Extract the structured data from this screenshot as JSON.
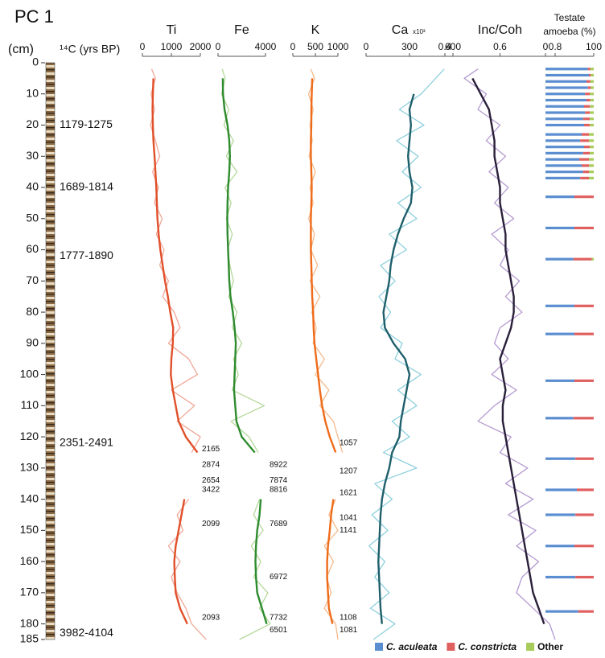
{
  "chart_data": {
    "type": "depth-profile",
    "title": "PC 1",
    "depth_label": "(cm)",
    "age_label": "¹⁴C (yrs BP)",
    "ylim": [
      0,
      185
    ],
    "yticks": [
      0,
      10,
      20,
      30,
      40,
      50,
      60,
      70,
      80,
      90,
      100,
      110,
      120,
      130,
      140,
      150,
      160,
      170,
      180,
      185
    ],
    "ages": [
      {
        "label": "1179-1275",
        "depth": 20
      },
      {
        "label": "1689-1814",
        "depth": 40
      },
      {
        "label": "1777-1890",
        "depth": 62
      },
      {
        "label": "2351-2491",
        "depth": 122
      },
      {
        "label": "3982-4104",
        "depth": 183
      }
    ],
    "depths": [
      2,
      5,
      10,
      15,
      20,
      25,
      30,
      35,
      40,
      45,
      50,
      55,
      60,
      65,
      70,
      75,
      80,
      85,
      90,
      95,
      100,
      105,
      110,
      115,
      120,
      125,
      130,
      135,
      140,
      145,
      150,
      155,
      160,
      165,
      170,
      175,
      180,
      185
    ],
    "panels": [
      {
        "name": "Ti",
        "xlim": [
          0,
          2000
        ],
        "xticks": [
          0,
          1000,
          2000
        ],
        "raw": {
          "color": "#f0a898",
          "values": [
            320,
            450,
            300,
            420,
            280,
            450,
            600,
            350,
            550,
            420,
            680,
            480,
            750,
            600,
            900,
            700,
            1100,
            1300,
            900,
            1600,
            1900,
            1000,
            1800,
            1200,
            2000,
            1700,
            null,
            null,
            1600,
            1200,
            1400,
            900,
            1300,
            1000,
            1200,
            1500,
            1700,
            2200
          ]
        },
        "smooth": {
          "color": "#e0502a",
          "values": [
            null,
            380,
            360,
            350,
            360,
            380,
            420,
            450,
            480,
            500,
            520,
            560,
            620,
            700,
            780,
            880,
            960,
            1060,
            1050,
            1000,
            980,
            1050,
            1150,
            1250,
            1500,
            1900,
            null,
            null,
            1450,
            1350,
            1250,
            1150,
            1100,
            1120,
            1150,
            1300,
            1550,
            null
          ]
        },
        "annotations": [
          {
            "value": 2165,
            "depth": 124
          },
          {
            "value": 2874,
            "depth": 129
          },
          {
            "value": 2654,
            "depth": 134
          },
          {
            "value": 3422,
            "depth": 137
          },
          {
            "value": 2099,
            "depth": 148
          },
          {
            "value": 2093,
            "depth": 178
          }
        ]
      },
      {
        "name": "Fe",
        "xlim": [
          0,
          4000
        ],
        "xticks": [
          0,
          4000
        ],
        "raw": {
          "color": "#b5d89a",
          "values": [
            350,
            600,
            300,
            900,
            500,
            1300,
            700,
            1600,
            600,
            1100,
            700,
            1200,
            800,
            1000,
            1300,
            900,
            1600,
            1200,
            2000,
            1300,
            1700,
            1200,
            3900,
            1100,
            2600,
            3400,
            null,
            null,
            3500,
            3000,
            3800,
            2800,
            3600,
            3000,
            4200,
            3500,
            4400,
            1800
          ]
        },
        "smooth": {
          "color": "#2e8b2e",
          "values": [
            null,
            400,
            420,
            550,
            800,
            950,
            1000,
            950,
            850,
            800,
            780,
            800,
            850,
            900,
            950,
            1050,
            1250,
            1400,
            1500,
            1450,
            1400,
            1350,
            1450,
            1550,
            2000,
            3100,
            null,
            null,
            3600,
            3500,
            3300,
            3200,
            3150,
            3200,
            3300,
            3700,
            4100,
            null
          ]
        },
        "annotations": [
          {
            "value": 8922,
            "depth": 129
          },
          {
            "value": 7874,
            "depth": 134
          },
          {
            "value": 8816,
            "depth": 137
          },
          {
            "value": 7689,
            "depth": 148
          },
          {
            "value": 6972,
            "depth": 165
          },
          {
            "value": 7732,
            "depth": 178
          },
          {
            "value": 6501,
            "depth": 182
          }
        ]
      },
      {
        "name": "K",
        "xlim": [
          0,
          1000
        ],
        "xticks": [
          0,
          500,
          1000
        ],
        "raw": {
          "color": "#f5b98a",
          "values": [
            400,
            480,
            350,
            450,
            380,
            430,
            360,
            500,
            380,
            450,
            350,
            480,
            400,
            550,
            380,
            600,
            420,
            520,
            450,
            700,
            500,
            800,
            600,
            900,
            1000,
            1100,
            null,
            null,
            950,
            800,
            1000,
            700,
            900,
            750,
            850,
            700,
            950,
            1000
          ]
        },
        "smooth": {
          "color": "#ee6b1a",
          "values": [
            null,
            430,
            420,
            410,
            410,
            400,
            400,
            410,
            420,
            410,
            400,
            400,
            400,
            410,
            420,
            430,
            450,
            460,
            480,
            520,
            560,
            600,
            650,
            720,
            820,
            950,
            null,
            null,
            900,
            850,
            820,
            780,
            760,
            760,
            780,
            800,
            880,
            null
          ]
        },
        "annotations": [
          {
            "value": 1057,
            "depth": 122
          },
          {
            "value": 1207,
            "depth": 131
          },
          {
            "value": 1621,
            "depth": 138
          },
          {
            "value": 1041,
            "depth": 146
          },
          {
            "value": 1141,
            "depth": 150
          },
          {
            "value": 1108,
            "depth": 178
          },
          {
            "value": 1081,
            "depth": 182
          }
        ]
      },
      {
        "name": "Ca",
        "unit": "x10³",
        "xlim": [
          0,
          600
        ],
        "xticks": [
          0,
          300,
          600
        ],
        "raw": {
          "color": "#8fd0dd",
          "values": [
            540,
            480,
            380,
            230,
            400,
            210,
            360,
            250,
            380,
            220,
            350,
            160,
            280,
            100,
            200,
            90,
            170,
            100,
            250,
            200,
            380,
            220,
            350,
            180,
            300,
            120,
            350,
            60,
            180,
            40,
            150,
            20,
            130,
            60,
            160,
            30,
            200,
            50
          ]
        },
        "smooth": {
          "color": "#1f5f6b",
          "values": [
            null,
            null,
            330,
            300,
            310,
            300,
            290,
            300,
            320,
            310,
            260,
            220,
            190,
            170,
            160,
            140,
            120,
            130,
            190,
            270,
            300,
            280,
            260,
            240,
            230,
            180,
            160,
            130,
            110,
            100,
            95,
            90,
            85,
            90,
            95,
            100,
            110,
            null
          ]
        }
      },
      {
        "name": "Inc/Coh",
        "xlim": [
          0.4,
          0.8
        ],
        "xticks": [
          0.4,
          0.6,
          0.8
        ],
        "raw": {
          "color": "#b49ad0",
          "values": [
            0.52,
            0.47,
            0.55,
            0.52,
            0.6,
            0.55,
            0.62,
            0.56,
            0.63,
            0.58,
            0.65,
            0.57,
            0.63,
            0.6,
            0.67,
            0.62,
            0.68,
            0.6,
            0.58,
            0.63,
            0.57,
            0.66,
            0.58,
            0.52,
            0.64,
            0.6,
            0.7,
            0.62,
            0.72,
            0.63,
            0.73,
            0.66,
            0.74,
            0.68,
            0.66,
            0.72,
            0.78,
            0.8
          ]
        },
        "smooth": {
          "color": "#2a1f3a",
          "values": [
            null,
            0.5,
            0.53,
            0.56,
            0.57,
            0.58,
            0.58,
            0.59,
            0.6,
            0.6,
            0.61,
            0.62,
            0.62,
            0.63,
            0.64,
            0.65,
            0.65,
            0.64,
            0.62,
            0.6,
            0.61,
            0.62,
            0.61,
            0.61,
            0.62,
            0.63,
            0.64,
            0.65,
            0.66,
            0.67,
            0.68,
            0.69,
            0.7,
            0.71,
            0.72,
            0.74,
            0.76,
            null
          ]
        }
      }
    ],
    "testate": {
      "title": [
        "Testate",
        "amoeba (%)"
      ],
      "xlim": [
        0,
        100
      ],
      "xticks": [
        0,
        100
      ],
      "depths": [
        2,
        4,
        6,
        8,
        10,
        12,
        14,
        16,
        18,
        20,
        23,
        25,
        27,
        29,
        31,
        33,
        35,
        37,
        43,
        53,
        63,
        78,
        87,
        102,
        114,
        127,
        137,
        145,
        155,
        165,
        176
      ],
      "series": [
        {
          "name": "C. aculeata",
          "color": "#5b8ed0",
          "values": [
            88,
            90,
            85,
            88,
            82,
            85,
            80,
            82,
            78,
            80,
            75,
            72,
            80,
            78,
            70,
            75,
            78,
            72,
            60,
            60,
            58,
            60,
            60,
            60,
            58,
            62,
            65,
            62,
            60,
            62,
            68
          ]
        },
        {
          "name": "C. constricta",
          "color": "#e06060",
          "values": [
            5,
            4,
            8,
            6,
            10,
            8,
            12,
            10,
            14,
            12,
            15,
            18,
            12,
            14,
            20,
            15,
            12,
            18,
            40,
            40,
            38,
            40,
            40,
            40,
            42,
            38,
            35,
            38,
            40,
            38,
            32
          ]
        },
        {
          "name": "Other",
          "color": "#a8cc5a",
          "values": [
            7,
            6,
            7,
            6,
            8,
            7,
            8,
            8,
            8,
            8,
            10,
            10,
            8,
            8,
            10,
            10,
            10,
            10,
            0,
            0,
            4,
            0,
            0,
            0,
            0,
            0,
            0,
            0,
            0,
            0,
            0
          ]
        }
      ]
    }
  }
}
